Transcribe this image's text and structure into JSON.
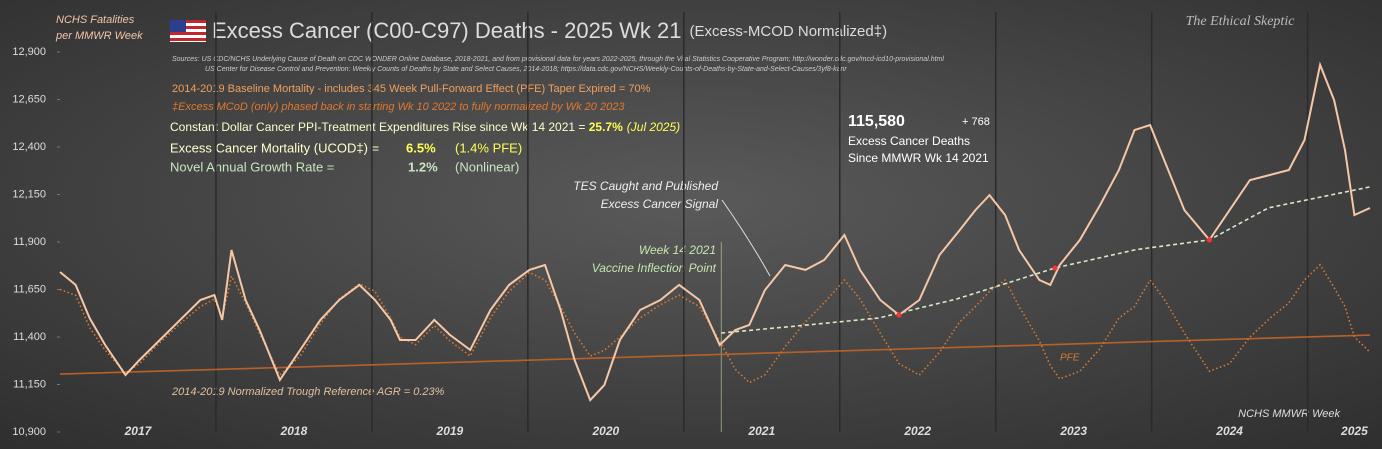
{
  "chart_data": {
    "type": "line",
    "title": "Excess Cancer (C00-C97) Deaths - 2025 Wk 21",
    "subtitle": "(Excess-MCOD  Normalized‡)",
    "y_label": [
      "NCHS Fatalities",
      "per MMWR Week"
    ],
    "x_label": "NCHS MMWR Week",
    "watermark": "The Ethical Skeptic",
    "sources": [
      "Sources:   US CDC/NCHS Underlying  Cause of Death on CDC WONDER Online Database, 2018-2021, and from provisional data for years 2022-2025, through the Vital Statistics Cooperative Program; http://wonder.cdc.gov/mcd-icd10-provisional.html",
      "US Center for Disease Control and Prevention: Weekly  Counts of Deaths by State and Select Causes, 2014-2018; https://data.cdc.gov/NCHS/Weekly-Counts-of-Deaths-by-State-and-Select-Causes/3yf8-kanr"
    ],
    "annotations": {
      "baseline": "2014-2019 Baseline Mortality - includes 345 Week Pull-Forward Effect (PFE) Taper Expired =  70%",
      "mcod": "‡Excess  MCoD (only) phased back in starting  Wk 10 2022 to fully normalized  by Wk 20 2023",
      "ppi": "Constant Dollar Cancer PPI-Treatment Expenditures Rise since Wk 14 2021  = ",
      "ppi_value": "25.7%",
      "ppi_date": "(Jul 2025)",
      "ucod": "Excess Cancer Mortality (UCOD‡) =",
      "ucod_value": "6.5%",
      "ucod_pfe": "(1.4% PFE)",
      "growth": "Novel Annual Growth Rate  =",
      "growth_value": "1.2%",
      "growth_note": "(Nonlinear)",
      "excess_total": "115,580",
      "excess_delta": "+ 768",
      "excess_caption": [
        "Excess Cancer Deaths",
        "Since MMWR Wk 14 2021"
      ],
      "tes": [
        "TES Caught and Published",
        "Excess Cancer Signal"
      ],
      "inflection": [
        "Week 14 2021",
        "Vaccine Inflection Point"
      ],
      "inflection_x": 2021.24,
      "trough": "2014-2019 Normalized Trough Reference AGR = 0.23%"
    },
    "xlim": [
      2017,
      2025.4
    ],
    "xticks": [
      {
        "value": 2017.5,
        "label": "2017"
      },
      {
        "value": 2018.5,
        "label": "2018"
      },
      {
        "value": 2019.5,
        "label": "2019"
      },
      {
        "value": 2020.5,
        "label": "2020"
      },
      {
        "value": 2021.5,
        "label": "2021"
      },
      {
        "value": 2022.5,
        "label": "2022"
      },
      {
        "value": 2023.5,
        "label": "2023"
      },
      {
        "value": 2024.5,
        "label": "2024"
      },
      {
        "value": 2025.3,
        "label": "2025"
      }
    ],
    "xgrid": [
      2018,
      2019,
      2020,
      2021,
      2022,
      2023,
      2024,
      2025
    ],
    "ylim": [
      10900,
      12900
    ],
    "yticks": [
      {
        "value": 10900,
        "label": "10,900"
      },
      {
        "value": 11150,
        "label": "11,150"
      },
      {
        "value": 11400,
        "label": "11,400"
      },
      {
        "value": 11650,
        "label": "11,650"
      },
      {
        "value": 11900,
        "label": "11,900"
      },
      {
        "value": 12150,
        "label": "12,150"
      },
      {
        "value": 12400,
        "label": "12,400"
      },
      {
        "value": 12650,
        "label": "12,650"
      },
      {
        "value": 12900,
        "label": "12,900"
      }
    ],
    "series": [
      {
        "color": "#f6c7a6",
        "style": "solid",
        "x": [
          2017.0,
          2017.1,
          2017.19,
          2017.29,
          2017.42,
          2017.51,
          2017.64,
          2017.77,
          2017.9,
          2017.99,
          2018.04,
          2018.1,
          2018.19,
          2018.28,
          2018.41,
          2018.54,
          2018.67,
          2018.79,
          2018.92,
          2019.02,
          2019.12,
          2019.18,
          2019.28,
          2019.4,
          2019.5,
          2019.63,
          2019.76,
          2019.88,
          2020.01,
          2020.11,
          2020.21,
          2020.3,
          2020.4,
          2020.49,
          2020.59,
          2020.72,
          2020.85,
          2020.97,
          2021.1,
          2021.23,
          2021.33,
          2021.42,
          2021.52,
          2021.65,
          2021.78,
          2021.9,
          2022.03,
          2022.13,
          2022.26,
          2022.38,
          2022.51,
          2022.64,
          2022.77,
          2022.87,
          2022.96,
          2023.06,
          2023.15,
          2023.28,
          2023.35,
          2023.41,
          2023.54,
          2023.67,
          2023.79,
          2023.89,
          2023.99,
          2024.08,
          2024.21,
          2024.37,
          2024.5,
          2024.63,
          2024.76,
          2024.88,
          2024.98,
          2025.08,
          2025.17,
          2025.24,
          2025.3,
          2025.4
        ],
        "values": [
          11742,
          11674,
          11500,
          11358,
          11200,
          11279,
          11384,
          11490,
          11595,
          11621,
          11490,
          11858,
          11595,
          11437,
          11174,
          11332,
          11490,
          11595,
          11674,
          11595,
          11490,
          11384,
          11384,
          11490,
          11411,
          11332,
          11542,
          11674,
          11753,
          11779,
          11542,
          11279,
          11068,
          11147,
          11384,
          11542,
          11595,
          11674,
          11595,
          11358,
          11437,
          11463,
          11647,
          11779,
          11753,
          11805,
          11937,
          11753,
          11595,
          11516,
          11595,
          11832,
          11963,
          12068,
          12147,
          12042,
          11858,
          11700,
          11674,
          11779,
          11911,
          12095,
          12279,
          12489,
          12516,
          12332,
          12068,
          11911,
          12068,
          12226,
          12253,
          12279,
          12437,
          12832,
          12647,
          12384,
          12042,
          12079
        ]
      },
      {
        "name": "PFE",
        "color": "#d87a30",
        "style": "dotted",
        "x": [
          2017.0,
          2017.1,
          2017.19,
          2017.29,
          2017.42,
          2017.51,
          2017.64,
          2017.77,
          2017.9,
          2017.99,
          2018.04,
          2018.1,
          2018.19,
          2018.28,
          2018.41,
          2018.54,
          2018.67,
          2018.79,
          2018.92,
          2019.02,
          2019.12,
          2019.18,
          2019.28,
          2019.4,
          2019.5,
          2019.63,
          2019.76,
          2019.88,
          2020.01,
          2020.11,
          2020.21,
          2020.3,
          2020.4,
          2020.49,
          2020.59,
          2020.72,
          2020.85,
          2020.97,
          2021.1,
          2021.23,
          2021.33,
          2021.42,
          2021.52,
          2021.65,
          2021.78,
          2021.9,
          2022.03,
          2022.13,
          2022.26,
          2022.38,
          2022.51,
          2022.64,
          2022.77,
          2022.87,
          2022.96,
          2023.06,
          2023.15,
          2023.28,
          2023.35,
          2023.41,
          2023.54,
          2023.67,
          2023.79,
          2023.89,
          2023.99,
          2024.08,
          2024.21,
          2024.37,
          2024.5,
          2024.63,
          2024.76,
          2024.88,
          2024.98,
          2025.08,
          2025.17,
          2025.24,
          2025.3,
          2025.4
        ],
        "values": [
          11650,
          11620,
          11450,
          11330,
          11210,
          11260,
          11370,
          11470,
          11560,
          11600,
          11500,
          11720,
          11580,
          11420,
          11200,
          11300,
          11470,
          11600,
          11680,
          11640,
          11500,
          11400,
          11360,
          11460,
          11380,
          11300,
          11500,
          11640,
          11740,
          11700,
          11560,
          11420,
          11300,
          11330,
          11400,
          11500,
          11570,
          11620,
          11560,
          11380,
          11230,
          11160,
          11200,
          11350,
          11480,
          11580,
          11700,
          11600,
          11420,
          11260,
          11200,
          11320,
          11480,
          11560,
          11640,
          11700,
          11560,
          11380,
          11250,
          11180,
          11220,
          11340,
          11500,
          11560,
          11700,
          11600,
          11420,
          11220,
          11260,
          11400,
          11500,
          11580,
          11700,
          11780,
          11660,
          11560,
          11400,
          11320
        ]
      },
      {
        "color": "#d8e8c8",
        "style": "dashed",
        "x": [
          2021.24,
          2021.75,
          2022.25,
          2022.75,
          2023.38,
          2023.9,
          2024.37,
          2024.75,
          2025.4
        ],
        "values": [
          11421,
          11460,
          11500,
          11600,
          11763,
          11860,
          11911,
          12080,
          12190
        ]
      },
      {
        "color": "#b8602a",
        "style": "solid",
        "x": [
          2017,
          2025.4
        ],
        "values": [
          11205,
          11410
        ]
      }
    ],
    "highlight_points": {
      "color": "#ff3030",
      "x": [
        2022.38,
        2023.38,
        2024.37
      ],
      "values": [
        11516,
        11763,
        11911
      ]
    }
  }
}
